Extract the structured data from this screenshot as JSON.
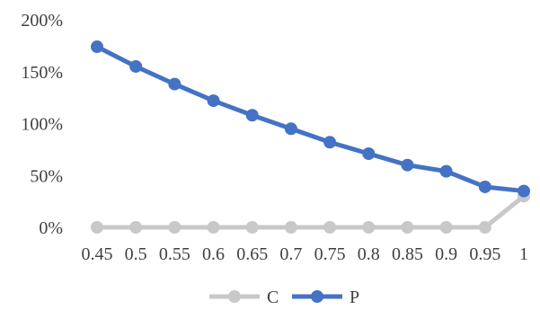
{
  "chart_data": {
    "type": "line",
    "x": [
      "0.45",
      "0.5",
      "0.55",
      "0.6",
      "0.65",
      "0.7",
      "0.75",
      "0.8",
      "0.85",
      "0.9",
      "0.95",
      "1"
    ],
    "ylim": [
      0,
      200
    ],
    "yticks": [
      0,
      50,
      100,
      150,
      200
    ],
    "ytick_labels": [
      "0%",
      "50%",
      "100%",
      "150%",
      "200%"
    ],
    "grid": false,
    "legend_position": "bottom",
    "series": [
      {
        "name": "C",
        "color": "#c8c8c8",
        "values": [
          0,
          0,
          0,
          0,
          0,
          0,
          0,
          0,
          0,
          0,
          0,
          30
        ]
      },
      {
        "name": "P",
        "color": "#4472c4",
        "values": [
          174,
          155,
          138,
          122,
          108,
          95,
          82,
          71,
          60,
          54,
          39,
          35
        ]
      }
    ]
  }
}
